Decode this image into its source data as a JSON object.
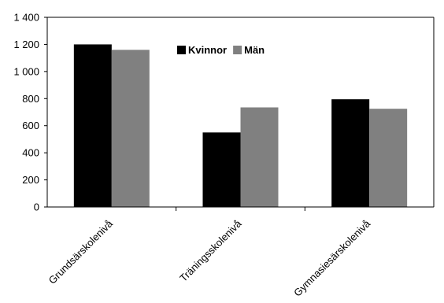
{
  "chart_data": {
    "type": "bar",
    "title": "",
    "xlabel": "",
    "ylabel": "",
    "categories": [
      "Grundsärskolenivå",
      "Träningsskolenivå",
      "Gymnasiesärskolenivå"
    ],
    "series": [
      {
        "name": "Kvinnor",
        "values": [
          1200,
          550,
          795
        ],
        "color": "#000000"
      },
      {
        "name": "Män",
        "values": [
          1160,
          735,
          725
        ],
        "color": "#808080"
      }
    ],
    "ylim": [
      0,
      1400
    ],
    "yticks": [
      0,
      200,
      400,
      600,
      800,
      1000,
      1200,
      1400
    ],
    "ytick_labels": [
      "0",
      "200",
      "400",
      "600",
      "800",
      "1 000",
      "1 200",
      "1 400"
    ],
    "grid": false,
    "legend_position": "top-center"
  }
}
